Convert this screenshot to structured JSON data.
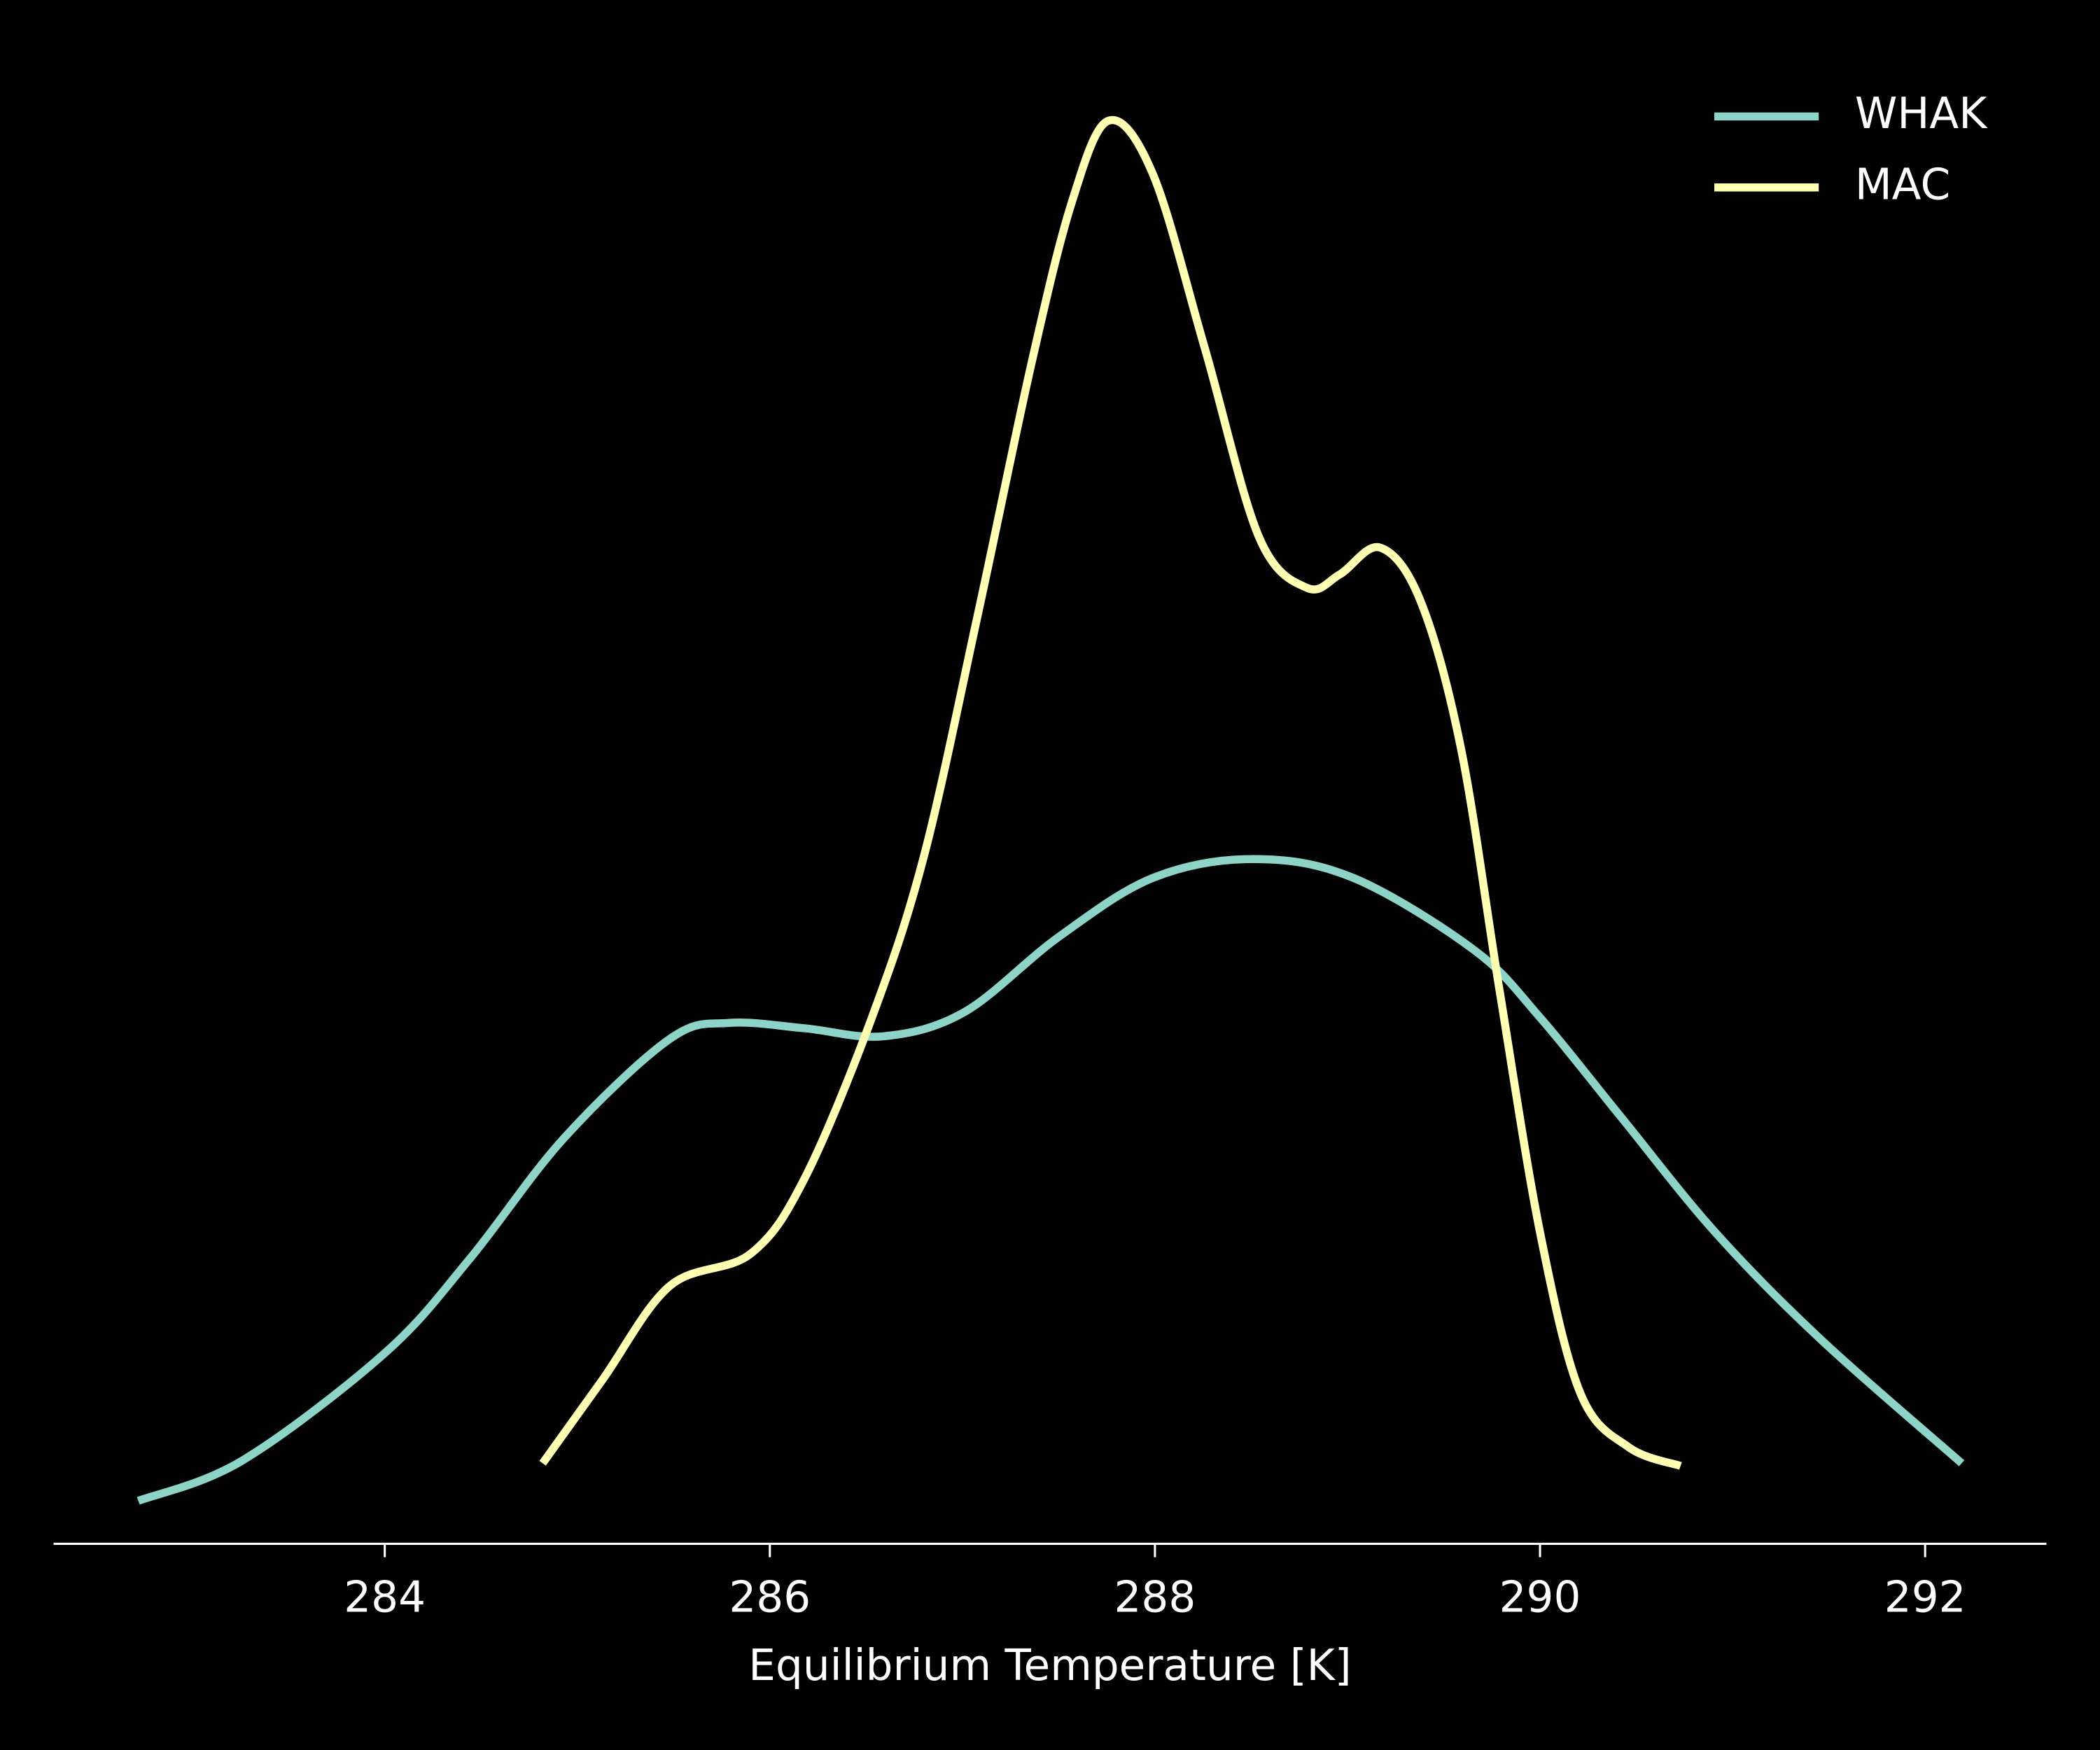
{
  "chart_data": {
    "type": "line",
    "xlabel": "Equilibrium Temperature [K]",
    "xlim": [
      282.28,
      292.63
    ],
    "xticks": [
      284,
      286,
      288,
      290,
      292
    ],
    "ylim": [
      0,
      0.55
    ],
    "legend": "upper right",
    "series": [
      {
        "name": "WHAK",
        "color": "#8dd3c7",
        "x": [
          282.72,
          283.26,
          284.0,
          284.44,
          284.93,
          285.48,
          285.79,
          286.18,
          286.59,
          287.01,
          287.5,
          287.99,
          288.51,
          289.03,
          289.66,
          290.0,
          290.42,
          290.91,
          291.46,
          292.19
        ],
        "values": [
          0.016,
          0.031,
          0.071,
          0.106,
          0.151,
          0.188,
          0.194,
          0.192,
          0.189,
          0.198,
          0.226,
          0.248,
          0.255,
          0.248,
          0.221,
          0.196,
          0.159,
          0.116,
          0.076,
          0.03
        ]
      },
      {
        "name": "MAC",
        "color": "#ffffb3",
        "x": [
          284.82,
          285.13,
          285.48,
          285.9,
          286.18,
          286.53,
          286.8,
          287.08,
          287.36,
          287.57,
          287.76,
          287.99,
          288.26,
          288.54,
          288.79,
          288.96,
          289.17,
          289.38,
          289.59,
          289.79,
          290.0,
          290.21,
          290.46,
          290.73
        ],
        "values": [
          0.03,
          0.061,
          0.096,
          0.108,
          0.136,
          0.196,
          0.256,
          0.346,
          0.44,
          0.5,
          0.53,
          0.51,
          0.445,
          0.375,
          0.356,
          0.361,
          0.371,
          0.351,
          0.296,
          0.206,
          0.116,
          0.056,
          0.036,
          0.029
        ]
      }
    ]
  }
}
